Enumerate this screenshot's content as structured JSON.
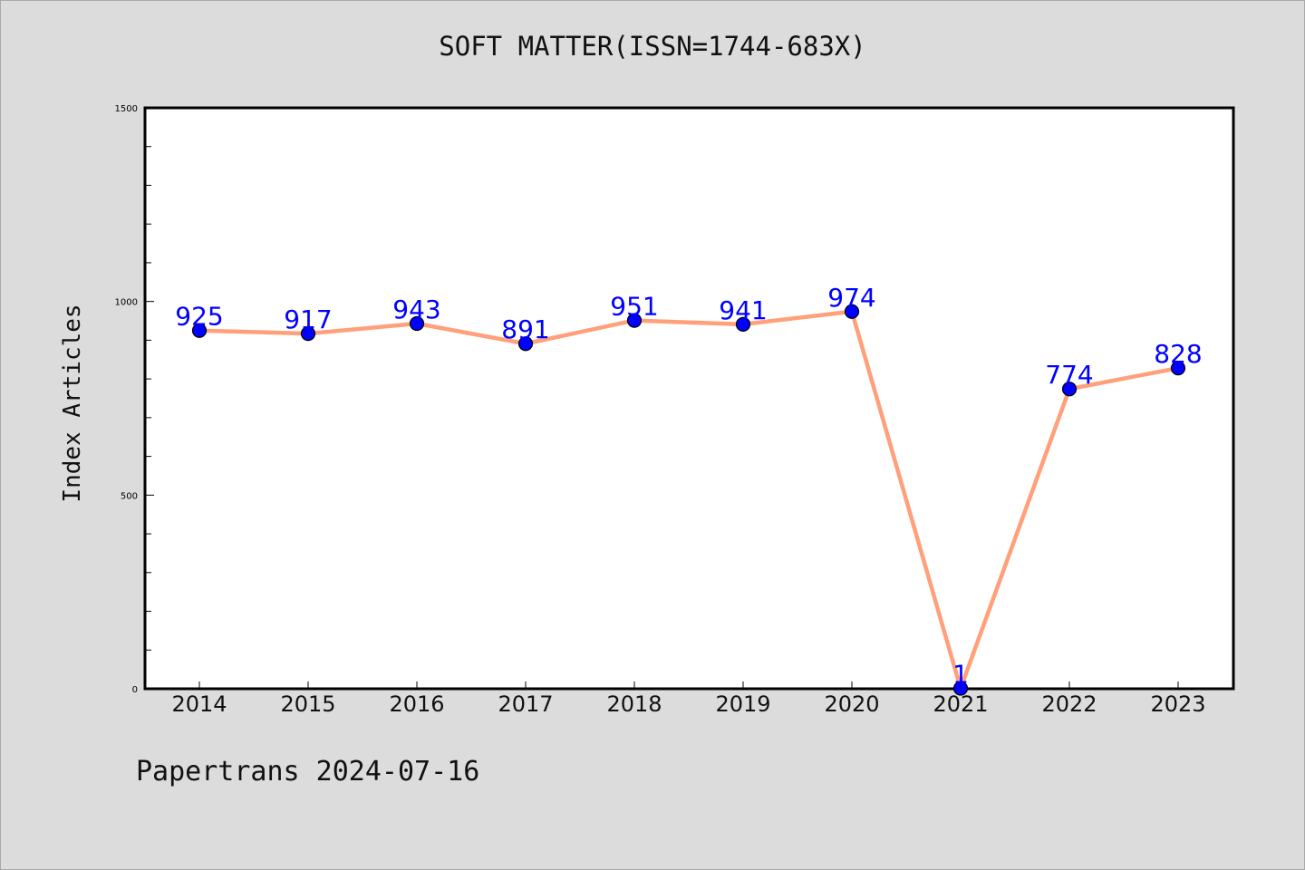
{
  "page": {
    "title": "SOFT MATTER(ISSN=1744-683X)",
    "footer": "Papertrans 2024-07-16"
  },
  "colors": {
    "background": "#dcdcdc",
    "plot_background": "#ffffff",
    "line": "#ffa07a",
    "marker": "#0000ff",
    "data_label": "#0000ff"
  },
  "chart_data": {
    "type": "line",
    "title": "SOFT MATTER(ISSN=1744-683X)",
    "xlabel": "",
    "ylabel": "Index Articles",
    "categories": [
      "2014",
      "2015",
      "2016",
      "2017",
      "2018",
      "2019",
      "2020",
      "2021",
      "2022",
      "2023"
    ],
    "values": [
      925,
      917,
      943,
      891,
      951,
      941,
      974,
      1,
      774,
      828
    ],
    "data_labels": [
      "925",
      "917",
      "943",
      "891",
      "951",
      "941",
      "974",
      "1",
      "774",
      "828"
    ],
    "ylim": [
      0,
      1500
    ],
    "y_ticks": [
      0,
      500,
      1000,
      1500
    ],
    "y_tick_labels": [
      "0",
      "500",
      "1000",
      "1500"
    ],
    "y_minor_step": 100,
    "grid": false,
    "legend": "none"
  }
}
